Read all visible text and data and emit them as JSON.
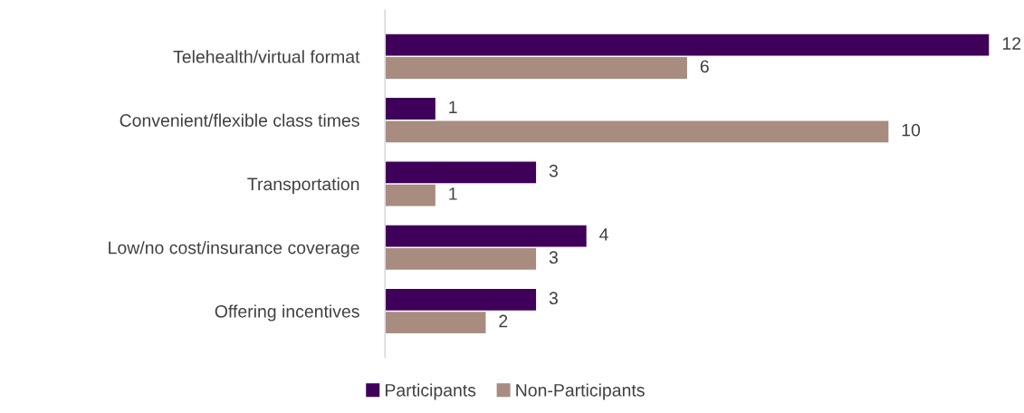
{
  "chart_data": {
    "type": "bar",
    "orientation": "horizontal",
    "categories": [
      "Telehealth/virtual format",
      "Convenient/flexible class times",
      "Transportation",
      "Low/no cost/insurance coverage",
      "Offering incentives"
    ],
    "series": [
      {
        "name": "Participants",
        "color": "#3f005a",
        "values": [
          12,
          1,
          3,
          4,
          3
        ]
      },
      {
        "name": "Non-Participants",
        "color": "#a88c80",
        "values": [
          6,
          10,
          1,
          3,
          2
        ]
      }
    ],
    "data_labels": true,
    "legend": "bottom",
    "grid": false
  }
}
